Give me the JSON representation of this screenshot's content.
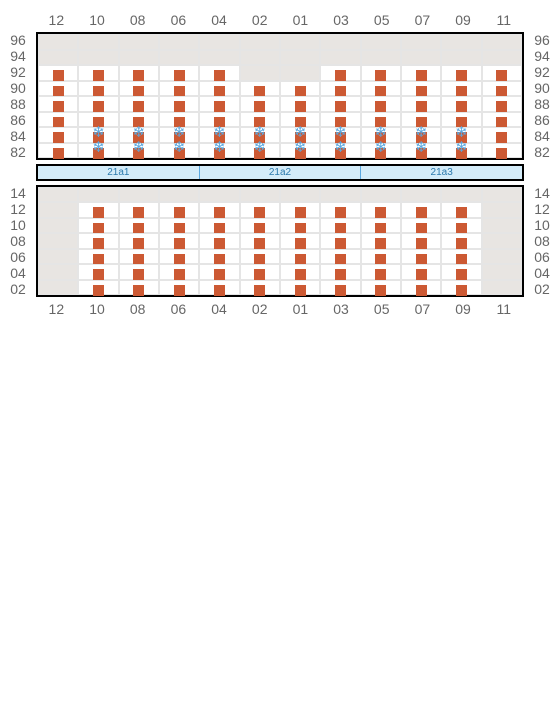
{
  "colors": {
    "marker": "#cc5933",
    "snowflake": "#5aa8e0",
    "unavailable_bg": "#e8e5e2",
    "available_bg": "#ffffff",
    "grid_border": "#000000",
    "cell_border": "#e5e5e5",
    "divider_bg": "#d4ecf9",
    "label_text": "#666666"
  },
  "columns": [
    "12",
    "10",
    "08",
    "06",
    "04",
    "02",
    "01",
    "03",
    "05",
    "07",
    "09",
    "11"
  ],
  "top": {
    "rows": [
      "96",
      "94",
      "92",
      "90",
      "88",
      "86",
      "84",
      "82"
    ],
    "cells": [
      [
        "u",
        "u",
        "u",
        "u",
        "u",
        "u",
        "u",
        "u",
        "u",
        "u",
        "u",
        "u"
      ],
      [
        "u",
        "u",
        "u",
        "u",
        "u",
        "u",
        "u",
        "u",
        "u",
        "u",
        "u",
        "u"
      ],
      [
        "m",
        "m",
        "m",
        "m",
        "m",
        "u",
        "u",
        "m",
        "m",
        "m",
        "m",
        "m"
      ],
      [
        "m",
        "m",
        "m",
        "m",
        "m",
        "m",
        "m",
        "m",
        "m",
        "m",
        "m",
        "m"
      ],
      [
        "m",
        "m",
        "m",
        "m",
        "m",
        "m",
        "m",
        "m",
        "m",
        "m",
        "m",
        "m"
      ],
      [
        "m",
        "m",
        "m",
        "m",
        "m",
        "m",
        "m",
        "m",
        "m",
        "m",
        "m",
        "m"
      ],
      [
        "m",
        "ms",
        "ms",
        "ms",
        "ms",
        "ms",
        "ms",
        "ms",
        "ms",
        "ms",
        "ms",
        "m"
      ],
      [
        "m",
        "ms",
        "ms",
        "ms",
        "ms",
        "ms",
        "ms",
        "ms",
        "ms",
        "ms",
        "ms",
        "m"
      ]
    ]
  },
  "divider": [
    "21a1",
    "21a2",
    "21a3"
  ],
  "bottom": {
    "rows": [
      "14",
      "12",
      "10",
      "08",
      "06",
      "04",
      "02"
    ],
    "cells": [
      [
        "u",
        "u",
        "u",
        "u",
        "u",
        "u",
        "u",
        "u",
        "u",
        "u",
        "u",
        "u"
      ],
      [
        "u",
        "m",
        "m",
        "m",
        "m",
        "m",
        "m",
        "m",
        "m",
        "m",
        "m",
        "u"
      ],
      [
        "u",
        "m",
        "m",
        "m",
        "m",
        "m",
        "m",
        "m",
        "m",
        "m",
        "m",
        "u"
      ],
      [
        "u",
        "m",
        "m",
        "m",
        "m",
        "m",
        "m",
        "m",
        "m",
        "m",
        "m",
        "u"
      ],
      [
        "u",
        "m",
        "m",
        "m",
        "m",
        "m",
        "m",
        "m",
        "m",
        "m",
        "m",
        "u"
      ],
      [
        "u",
        "m",
        "m",
        "m",
        "m",
        "m",
        "m",
        "m",
        "m",
        "m",
        "m",
        "u"
      ],
      [
        "u",
        "m",
        "m",
        "m",
        "m",
        "m",
        "m",
        "m",
        "m",
        "m",
        "m",
        "u"
      ]
    ]
  }
}
